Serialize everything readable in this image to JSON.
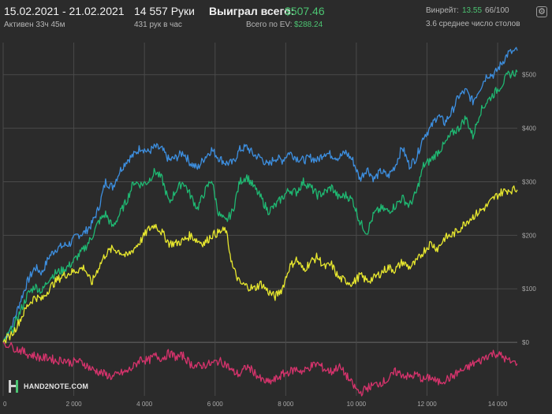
{
  "header": {
    "date_range": "15.02.2021 - 21.02.2021",
    "active_time": "Активен 33ч 45м",
    "hands": "14 557 Руки",
    "hands_per_hour": "431 рук в час",
    "won_label": "Выиграл всего:",
    "won_value": "$507.46",
    "ev_label": "Всего по EV:",
    "ev_value": "$288.24",
    "winrate_label": "Винрейт:",
    "winrate_value": "13.55",
    "winrate_suffix": "66/100",
    "tables": "3.6 среднее число столов"
  },
  "branding": {
    "logo_text": "HAND2NOTE.COM"
  },
  "colors": {
    "background": "#2b2b2b",
    "grid": "#4a4a4a",
    "blue": "#3d8fe0",
    "green": "#1fb872",
    "yellow": "#e8e82e",
    "pink": "#d6336c",
    "accent_green": "#4cc472"
  },
  "chart_data": {
    "type": "line",
    "x_ticks": [
      "0",
      "2 000",
      "4 000",
      "6 000",
      "8 000",
      "10 000",
      "12 000",
      "14 000"
    ],
    "y_ticks": [
      "$0",
      "$100",
      "$200",
      "$300",
      "$400",
      "$500"
    ],
    "xlim": [
      0,
      14557
    ],
    "ylim": [
      -100,
      560
    ],
    "grid": true,
    "series": [
      {
        "key": "blue",
        "color": "#3d8fe0",
        "points": [
          [
            0,
            0
          ],
          [
            300,
            40
          ],
          [
            500,
            80
          ],
          [
            700,
            115
          ],
          [
            900,
            140
          ],
          [
            1100,
            130
          ],
          [
            1300,
            160
          ],
          [
            1500,
            175
          ],
          [
            1700,
            180
          ],
          [
            1900,
            185
          ],
          [
            2100,
            200
          ],
          [
            2300,
            205
          ],
          [
            2500,
            220
          ],
          [
            2700,
            250
          ],
          [
            2900,
            300
          ],
          [
            3100,
            290
          ],
          [
            3300,
            320
          ],
          [
            3500,
            340
          ],
          [
            3700,
            350
          ],
          [
            3900,
            365
          ],
          [
            4100,
            355
          ],
          [
            4300,
            365
          ],
          [
            4500,
            360
          ],
          [
            4700,
            340
          ],
          [
            4900,
            345
          ],
          [
            5100,
            355
          ],
          [
            5300,
            335
          ],
          [
            5500,
            325
          ],
          [
            5700,
            345
          ],
          [
            5900,
            360
          ],
          [
            6100,
            345
          ],
          [
            6300,
            335
          ],
          [
            6500,
            335
          ],
          [
            6700,
            360
          ],
          [
            6900,
            365
          ],
          [
            7100,
            350
          ],
          [
            7300,
            345
          ],
          [
            7500,
            330
          ],
          [
            7700,
            345
          ],
          [
            7900,
            340
          ],
          [
            8100,
            355
          ],
          [
            8300,
            345
          ],
          [
            8500,
            340
          ],
          [
            8700,
            345
          ],
          [
            8900,
            340
          ],
          [
            9100,
            355
          ],
          [
            9300,
            350
          ],
          [
            9500,
            345
          ],
          [
            9700,
            355
          ],
          [
            9900,
            340
          ],
          [
            10100,
            305
          ],
          [
            10300,
            325
          ],
          [
            10500,
            305
          ],
          [
            10700,
            320
          ],
          [
            10900,
            310
          ],
          [
            11100,
            330
          ],
          [
            11300,
            365
          ],
          [
            11500,
            330
          ],
          [
            11700,
            345
          ],
          [
            11900,
            385
          ],
          [
            12100,
            400
          ],
          [
            12300,
            425
          ],
          [
            12500,
            410
          ],
          [
            12700,
            430
          ],
          [
            12900,
            460
          ],
          [
            13100,
            470
          ],
          [
            13300,
            450
          ],
          [
            13500,
            475
          ],
          [
            13700,
            500
          ],
          [
            13900,
            500
          ],
          [
            14100,
            520
          ],
          [
            14300,
            540
          ],
          [
            14557,
            545
          ]
        ]
      },
      {
        "key": "green",
        "color": "#1fb872",
        "points": [
          [
            0,
            0
          ],
          [
            300,
            30
          ],
          [
            500,
            60
          ],
          [
            700,
            90
          ],
          [
            900,
            105
          ],
          [
            1100,
            95
          ],
          [
            1300,
            120
          ],
          [
            1500,
            130
          ],
          [
            1700,
            135
          ],
          [
            1900,
            145
          ],
          [
            2100,
            160
          ],
          [
            2300,
            175
          ],
          [
            2500,
            195
          ],
          [
            2700,
            225
          ],
          [
            2900,
            240
          ],
          [
            3100,
            215
          ],
          [
            3300,
            240
          ],
          [
            3500,
            265
          ],
          [
            3700,
            300
          ],
          [
            3900,
            295
          ],
          [
            4100,
            300
          ],
          [
            4300,
            320
          ],
          [
            4500,
            305
          ],
          [
            4700,
            260
          ],
          [
            4900,
            285
          ],
          [
            5100,
            300
          ],
          [
            5300,
            275
          ],
          [
            5500,
            250
          ],
          [
            5700,
            280
          ],
          [
            5900,
            305
          ],
          [
            6100,
            240
          ],
          [
            6300,
            225
          ],
          [
            6500,
            245
          ],
          [
            6700,
            300
          ],
          [
            6900,
            310
          ],
          [
            7100,
            290
          ],
          [
            7300,
            270
          ],
          [
            7500,
            245
          ],
          [
            7700,
            255
          ],
          [
            7900,
            270
          ],
          [
            8100,
            285
          ],
          [
            8300,
            280
          ],
          [
            8500,
            300
          ],
          [
            8700,
            290
          ],
          [
            8900,
            275
          ],
          [
            9100,
            280
          ],
          [
            9300,
            290
          ],
          [
            9500,
            270
          ],
          [
            9700,
            275
          ],
          [
            9900,
            265
          ],
          [
            10100,
            225
          ],
          [
            10300,
            205
          ],
          [
            10500,
            240
          ],
          [
            10700,
            250
          ],
          [
            10900,
            245
          ],
          [
            11100,
            255
          ],
          [
            11300,
            270
          ],
          [
            11500,
            255
          ],
          [
            11700,
            280
          ],
          [
            11900,
            330
          ],
          [
            12100,
            340
          ],
          [
            12300,
            355
          ],
          [
            12500,
            370
          ],
          [
            12700,
            390
          ],
          [
            12900,
            400
          ],
          [
            13100,
            420
          ],
          [
            13300,
            385
          ],
          [
            13500,
            430
          ],
          [
            13700,
            450
          ],
          [
            13900,
            465
          ],
          [
            14100,
            480
          ],
          [
            14300,
            500
          ],
          [
            14557,
            505
          ]
        ]
      },
      {
        "key": "yellow",
        "color": "#e8e82e",
        "points": [
          [
            0,
            0
          ],
          [
            300,
            20
          ],
          [
            500,
            45
          ],
          [
            700,
            70
          ],
          [
            900,
            85
          ],
          [
            1100,
            80
          ],
          [
            1300,
            100
          ],
          [
            1500,
            115
          ],
          [
            1700,
            125
          ],
          [
            1900,
            130
          ],
          [
            2100,
            135
          ],
          [
            2300,
            140
          ],
          [
            2500,
            110
          ],
          [
            2700,
            140
          ],
          [
            2900,
            165
          ],
          [
            3100,
            175
          ],
          [
            3300,
            170
          ],
          [
            3500,
            160
          ],
          [
            3700,
            175
          ],
          [
            3900,
            190
          ],
          [
            4100,
            210
          ],
          [
            4300,
            220
          ],
          [
            4500,
            205
          ],
          [
            4700,
            185
          ],
          [
            4900,
            185
          ],
          [
            5100,
            190
          ],
          [
            5300,
            200
          ],
          [
            5500,
            190
          ],
          [
            5700,
            185
          ],
          [
            5900,
            200
          ],
          [
            6100,
            205
          ],
          [
            6300,
            210
          ],
          [
            6500,
            140
          ],
          [
            6700,
            110
          ],
          [
            6900,
            105
          ],
          [
            7100,
            100
          ],
          [
            7300,
            110
          ],
          [
            7500,
            95
          ],
          [
            7700,
            85
          ],
          [
            7900,
            100
          ],
          [
            8100,
            140
          ],
          [
            8300,
            155
          ],
          [
            8500,
            135
          ],
          [
            8700,
            150
          ],
          [
            8900,
            160
          ],
          [
            9100,
            140
          ],
          [
            9300,
            145
          ],
          [
            9500,
            120
          ],
          [
            9700,
            115
          ],
          [
            9900,
            110
          ],
          [
            10100,
            125
          ],
          [
            10300,
            115
          ],
          [
            10500,
            120
          ],
          [
            10700,
            130
          ],
          [
            10900,
            140
          ],
          [
            11100,
            135
          ],
          [
            11300,
            150
          ],
          [
            11500,
            140
          ],
          [
            11700,
            150
          ],
          [
            11900,
            170
          ],
          [
            12100,
            185
          ],
          [
            12300,
            175
          ],
          [
            12500,
            195
          ],
          [
            12700,
            200
          ],
          [
            12900,
            210
          ],
          [
            13100,
            225
          ],
          [
            13300,
            235
          ],
          [
            13500,
            245
          ],
          [
            13700,
            255
          ],
          [
            13900,
            270
          ],
          [
            14100,
            280
          ],
          [
            14300,
            285
          ],
          [
            14557,
            285
          ]
        ]
      },
      {
        "key": "pink",
        "color": "#d6336c",
        "points": [
          [
            0,
            0
          ],
          [
            300,
            -10
          ],
          [
            500,
            -15
          ],
          [
            700,
            -22
          ],
          [
            900,
            -25
          ],
          [
            1100,
            -30
          ],
          [
            1300,
            -28
          ],
          [
            1500,
            -35
          ],
          [
            1700,
            -32
          ],
          [
            1900,
            -38
          ],
          [
            2100,
            -35
          ],
          [
            2300,
            -40
          ],
          [
            2500,
            -50
          ],
          [
            2700,
            -55
          ],
          [
            2900,
            -60
          ],
          [
            3100,
            -65
          ],
          [
            3300,
            -58
          ],
          [
            3500,
            -55
          ],
          [
            3700,
            -45
          ],
          [
            3900,
            -30
          ],
          [
            4100,
            -35
          ],
          [
            4300,
            -25
          ],
          [
            4500,
            -30
          ],
          [
            4700,
            -20
          ],
          [
            4900,
            -28
          ],
          [
            5100,
            -25
          ],
          [
            5300,
            -40
          ],
          [
            5500,
            -45
          ],
          [
            5700,
            -42
          ],
          [
            5900,
            -40
          ],
          [
            6100,
            -35
          ],
          [
            6300,
            -40
          ],
          [
            6500,
            -55
          ],
          [
            6700,
            -60
          ],
          [
            6900,
            -45
          ],
          [
            7100,
            -55
          ],
          [
            7300,
            -70
          ],
          [
            7500,
            -75
          ],
          [
            7700,
            -70
          ],
          [
            7900,
            -60
          ],
          [
            8100,
            -55
          ],
          [
            8300,
            -50
          ],
          [
            8500,
            -55
          ],
          [
            8700,
            -45
          ],
          [
            8900,
            -40
          ],
          [
            9100,
            -50
          ],
          [
            9300,
            -55
          ],
          [
            9500,
            -45
          ],
          [
            9700,
            -60
          ],
          [
            9900,
            -80
          ],
          [
            10100,
            -95
          ],
          [
            10300,
            -85
          ],
          [
            10500,
            -80
          ],
          [
            10700,
            -75
          ],
          [
            10900,
            -70
          ],
          [
            11100,
            -55
          ],
          [
            11300,
            -60
          ],
          [
            11500,
            -65
          ],
          [
            11700,
            -60
          ],
          [
            11900,
            -70
          ],
          [
            12100,
            -65
          ],
          [
            12300,
            -75
          ],
          [
            12500,
            -70
          ],
          [
            12700,
            -65
          ],
          [
            12900,
            -55
          ],
          [
            13100,
            -50
          ],
          [
            13300,
            -40
          ],
          [
            13500,
            -35
          ],
          [
            13700,
            -25
          ],
          [
            13900,
            -20
          ],
          [
            14100,
            -25
          ],
          [
            14300,
            -35
          ],
          [
            14557,
            -40
          ]
        ]
      }
    ]
  }
}
